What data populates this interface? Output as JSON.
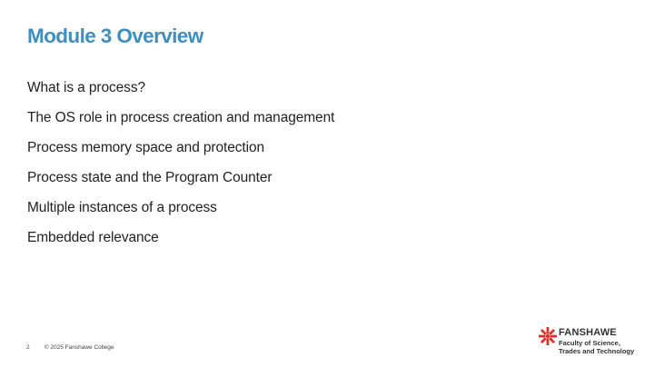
{
  "slide": {
    "title": "Module 3 Overview",
    "bullets": [
      "What is a process?",
      "The OS role in process creation and management",
      "Process memory space and protection",
      "Process state and the Program Counter",
      "Multiple instances of a process",
      "Embedded relevance"
    ]
  },
  "footer": {
    "page_number": "2",
    "copyright": "© 2025 Fanshawe College"
  },
  "logo": {
    "brand": "FANSHAWE",
    "faculty_line1": "Faculty of Science,",
    "faculty_line2": "Trades and Technology",
    "icon": "fanshawe-star-logo-icon",
    "color": "#d9322b"
  },
  "colors": {
    "title": "#3d8fc0",
    "body_text": "#222222"
  }
}
